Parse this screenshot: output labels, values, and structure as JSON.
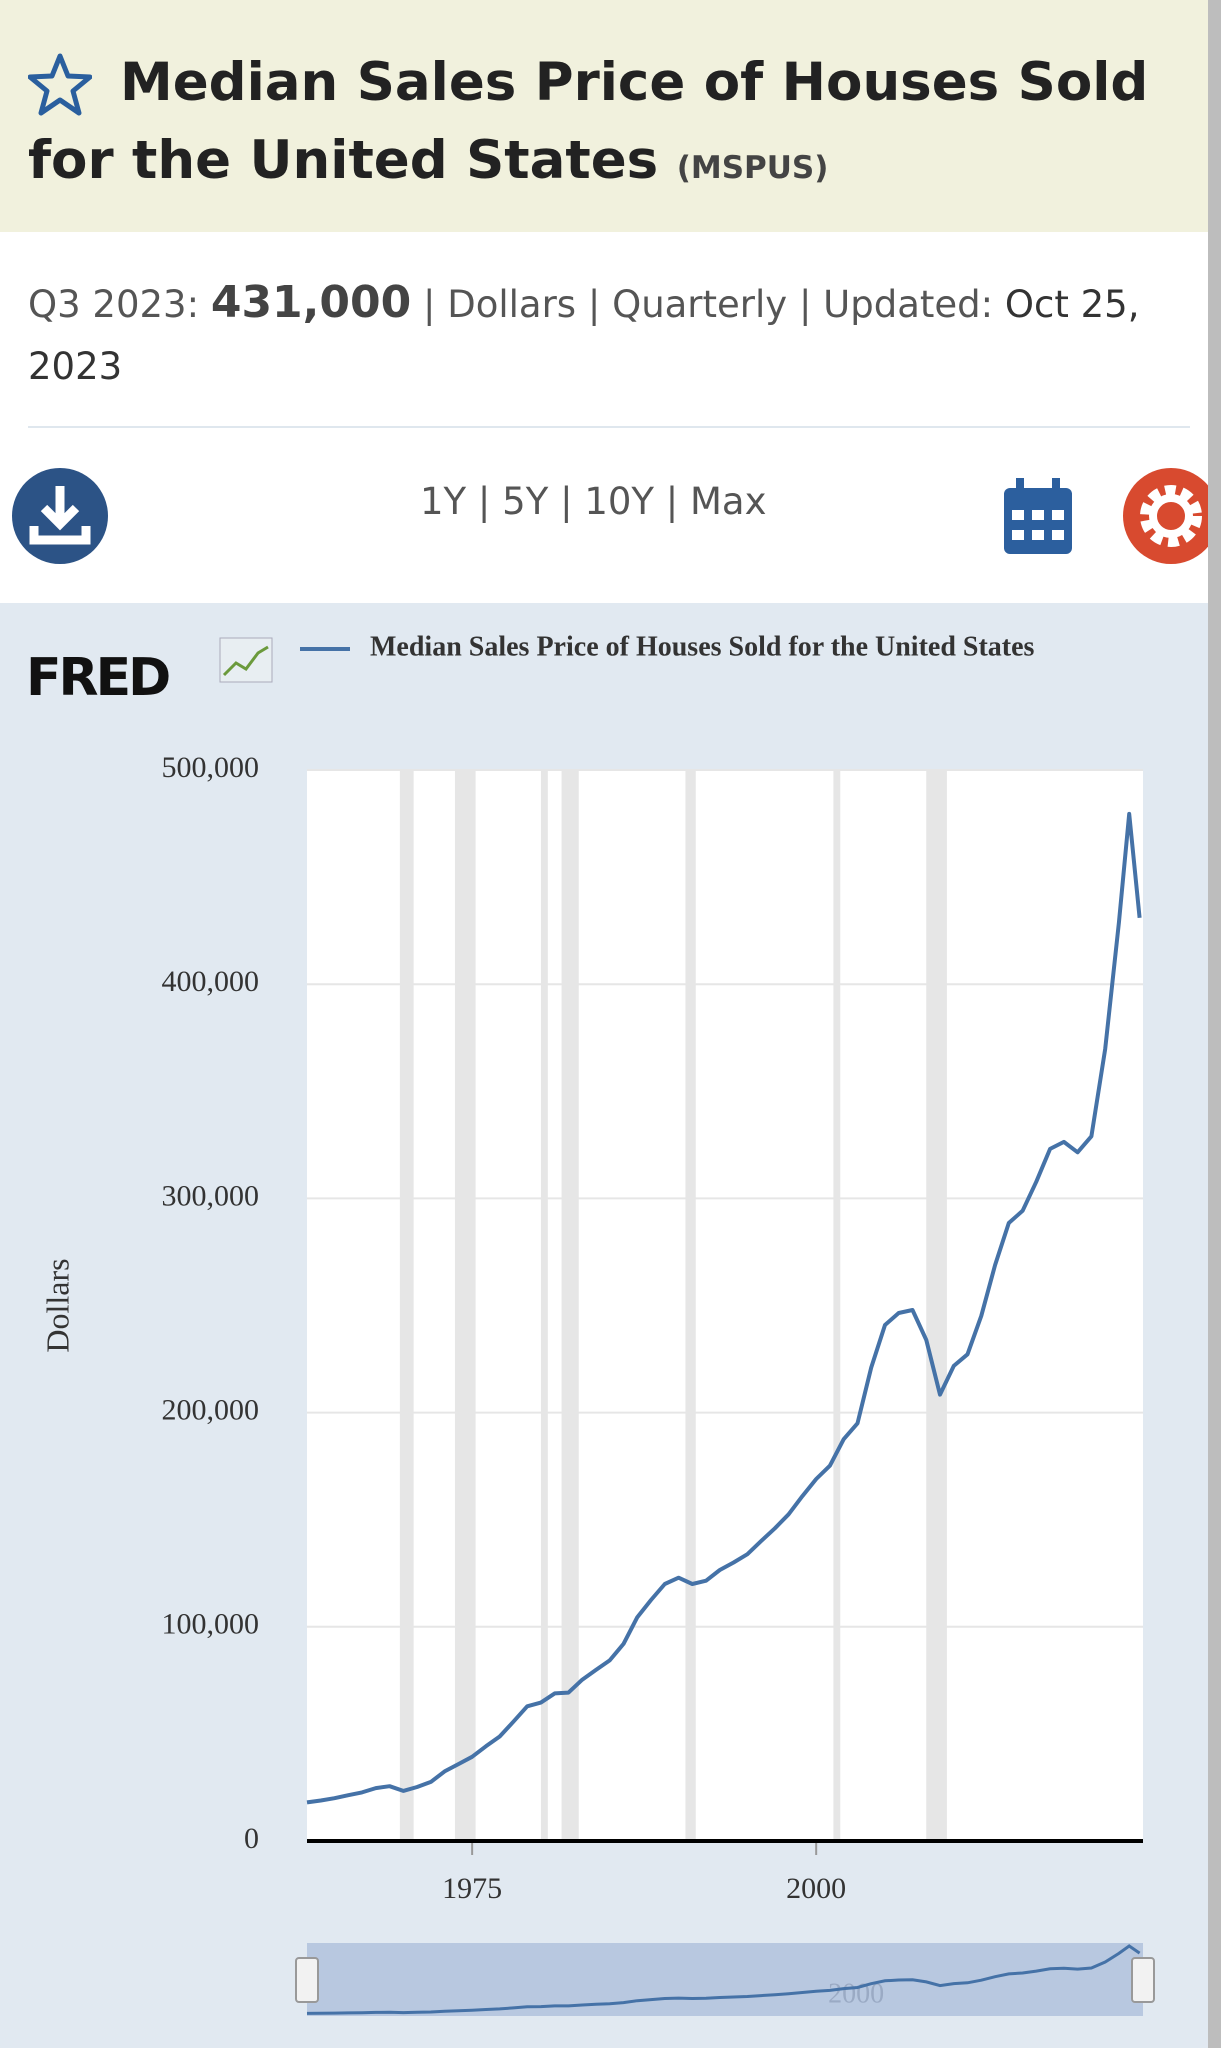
{
  "header": {
    "title": "Median Sales Price of Houses Sold for the United States",
    "series_id": "(MSPUS)"
  },
  "summary": {
    "period": "Q3 2023:",
    "value": "431,000",
    "details": "| Dollars | Quarterly | Updated:",
    "updated": "Oct 25, 2023"
  },
  "toolbar": {
    "ranges": [
      "1Y",
      "5Y",
      "10Y",
      "Max"
    ],
    "separator": "|"
  },
  "logo": "FRED",
  "chart_data": {
    "type": "line",
    "series": [
      {
        "name": "Median Sales Price of Houses Sold for the United States",
        "color": "#4572a7",
        "x": [
          1963,
          1964,
          1965,
          1966,
          1967,
          1968,
          1969,
          1970,
          1971,
          1972,
          1973,
          1974,
          1975,
          1976,
          1977,
          1978,
          1979,
          1980,
          1981,
          1982,
          1983,
          1984,
          1985,
          1986,
          1987,
          1988,
          1989,
          1990,
          1991,
          1992,
          1993,
          1994,
          1995,
          1996,
          1997,
          1998,
          1999,
          2000,
          2001,
          2002,
          2003,
          2004,
          2005,
          2006,
          2007,
          2008,
          2009,
          2010,
          2011,
          2012,
          2013,
          2014,
          2015,
          2016,
          2017,
          2018,
          2019,
          2020,
          2021,
          2022,
          2022.75,
          2023.5
        ],
        "values": [
          18000,
          18900,
          20000,
          21400,
          22700,
          24700,
          25600,
          23400,
          25200,
          27600,
          32500,
          35900,
          39300,
          44200,
          48800,
          55700,
          62900,
          64600,
          68900,
          69300,
          75300,
          79900,
          84300,
          92000,
          104500,
          112500,
          120000,
          122900,
          120000,
          121500,
          126500,
          130000,
          133900,
          140000,
          146000,
          152500,
          161000,
          169000,
          175200,
          187600,
          195000,
          221000,
          240900,
          246500,
          247900,
          233900,
          208400,
          221800,
          227200,
          245200,
          268900,
          288500,
          294200,
          307800,
          323100,
          326400,
          321500,
          329000,
          369800,
          428700,
          479500,
          431000
        ]
      }
    ],
    "y_label": "Dollars",
    "xlim": [
      1963,
      2023.75
    ],
    "xticks": [
      1975,
      2000
    ],
    "ylim": [
      0,
      500000
    ],
    "yticks": [
      0,
      {
        "value": 100000,
        "label": "100,000"
      },
      {
        "value": 200000,
        "label": "200,000"
      },
      {
        "value": 300000,
        "label": "300,000"
      },
      {
        "value": 400000,
        "label": "400,000"
      },
      {
        "value": 500000,
        "label": "500,000"
      }
    ],
    "grid": true,
    "recessions": [
      [
        1969.75,
        1970.75
      ],
      [
        1973.75,
        1975.25
      ],
      [
        1980,
        1980.5
      ],
      [
        1981.5,
        1982.75
      ],
      [
        1990.5,
        1991.25
      ],
      [
        2001.25,
        2001.75
      ],
      [
        2008,
        2009.5
      ]
    ],
    "navigator_xticks": [
      2000
    ]
  }
}
